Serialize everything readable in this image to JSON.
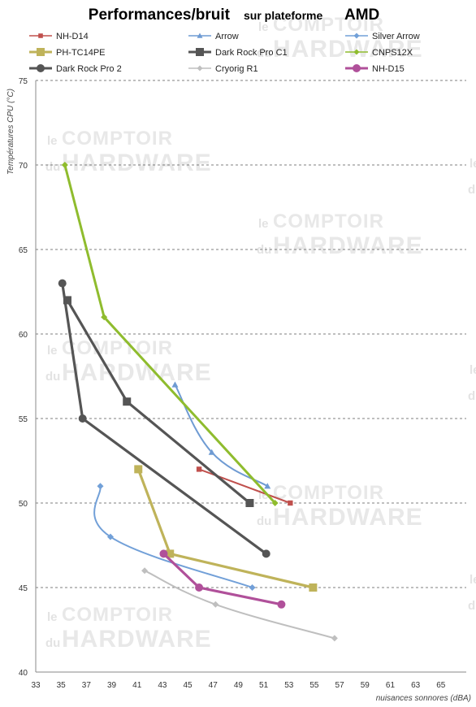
{
  "chart_data": {
    "type": "line",
    "title": "Performances/bruit",
    "subtitle_light": "sur plateforme",
    "subtitle_bold": "AMD",
    "xlabel": "nuisances sonnores (dBA)",
    "ylabel": "Températures  CPU (°C)",
    "xlim": [
      33,
      67
    ],
    "ylim": [
      40,
      75
    ],
    "x_ticks": [
      33,
      35,
      37,
      39,
      41,
      43,
      45,
      47,
      49,
      51,
      53,
      55,
      57,
      59,
      61,
      63,
      65
    ],
    "y_ticks": [
      40,
      45,
      50,
      55,
      60,
      65,
      70,
      75
    ],
    "grid": "horizontal",
    "legend_position": "top",
    "watermark": {
      "line1_small": "le",
      "line1_big": "COMPTOIR",
      "line2_small": "du",
      "line2_big": "HARDWARE"
    },
    "series": [
      {
        "name": "NH-D14",
        "color": "#c0504d",
        "marker": "square-small",
        "x": [
          45.9,
          53.1
        ],
        "y": [
          52,
          50
        ]
      },
      {
        "name": "Arrow",
        "color": "#6f9bd3",
        "marker": "triangle",
        "x": [
          44.0,
          46.9,
          51.3
        ],
        "y": [
          57,
          53,
          51
        ]
      },
      {
        "name": "Silver Arrow",
        "color": "#72a0d8",
        "marker": "diamond",
        "x": [
          38.1,
          38.9,
          50.1
        ],
        "y": [
          51,
          48,
          45
        ]
      },
      {
        "name": "PH-TC14PE",
        "color": "#bfb35a",
        "marker": "square",
        "x": [
          41.1,
          43.6,
          54.9
        ],
        "y": [
          52,
          47,
          45
        ]
      },
      {
        "name": "Dark Rock Pro C1",
        "color": "#555555",
        "marker": "square",
        "x": [
          35.5,
          40.2,
          49.9
        ],
        "y": [
          62,
          56,
          50
        ]
      },
      {
        "name": "CNPS12X",
        "color": "#8fbc2e",
        "marker": "diamond",
        "x": [
          35.3,
          38.4,
          51.9
        ],
        "y": [
          70,
          61,
          50
        ]
      },
      {
        "name": "Dark Rock Pro 2",
        "color": "#555555",
        "marker": "circle",
        "x": [
          35.1,
          36.7,
          51.2
        ],
        "y": [
          63,
          55,
          47
        ]
      },
      {
        "name": "Cryorig R1",
        "color": "#bfbfbf",
        "marker": "diamond",
        "x": [
          41.6,
          47.2,
          56.6
        ],
        "y": [
          46,
          44,
          42
        ]
      },
      {
        "name": "NH-D15",
        "color": "#b0509a",
        "marker": "circle",
        "x": [
          43.1,
          45.9,
          52.4
        ],
        "y": [
          47,
          45,
          44
        ]
      }
    ]
  }
}
